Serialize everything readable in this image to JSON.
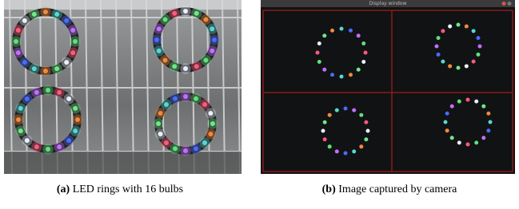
{
  "figure": {
    "panels": [
      {
        "label": "(a)",
        "caption": "LED rings with 16 bulbs"
      },
      {
        "label": "(b)",
        "caption": "Image captured by camera",
        "window_title": "Display window"
      }
    ]
  }
}
